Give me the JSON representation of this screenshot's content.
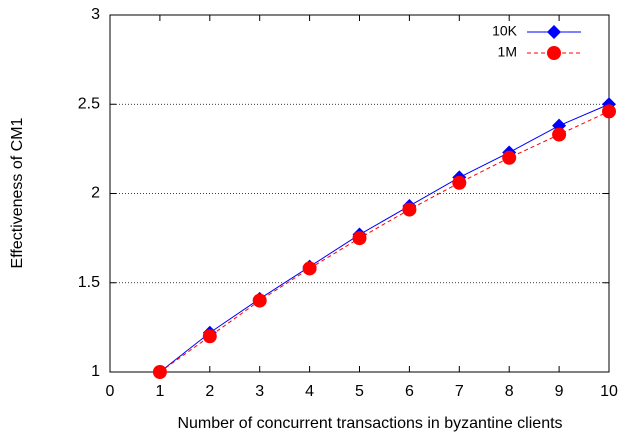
{
  "chart_data": {
    "type": "line",
    "xlabel": "Number of concurrent transactions in byzantine clients",
    "ylabel": "Effectiveness of CM1",
    "x": [
      1,
      2,
      3,
      4,
      5,
      6,
      7,
      8,
      9,
      10
    ],
    "series": [
      {
        "name": "10K",
        "color": "#0000ff",
        "marker": "diamond",
        "dash": "solid",
        "values": [
          1.0,
          1.22,
          1.41,
          1.59,
          1.77,
          1.93,
          2.09,
          2.23,
          2.38,
          2.5
        ]
      },
      {
        "name": "1M",
        "color": "#ff0000",
        "marker": "circle",
        "dash": "dashed",
        "values": [
          1.0,
          1.2,
          1.4,
          1.58,
          1.75,
          1.91,
          2.06,
          2.2,
          2.33,
          2.46
        ]
      }
    ],
    "xlim": [
      0,
      10
    ],
    "xticks": [
      0,
      1,
      2,
      3,
      4,
      5,
      6,
      7,
      8,
      9,
      10
    ],
    "ylim": [
      1,
      3
    ],
    "yticks": [
      1,
      1.5,
      2,
      2.5,
      3
    ],
    "grid": true,
    "legend": "upper right"
  }
}
